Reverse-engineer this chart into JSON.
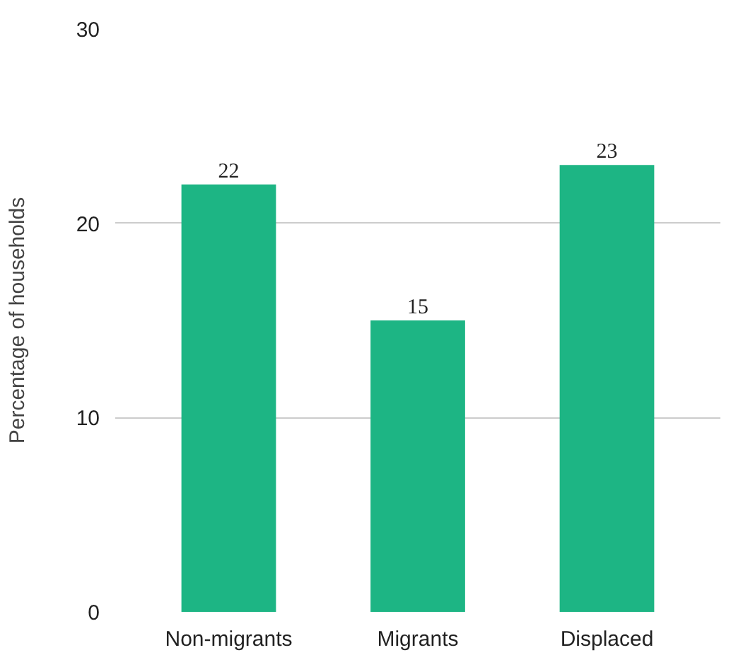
{
  "chart_data": {
    "type": "bar",
    "ylabel": "Percentage of households",
    "categories": [
      "Non-migrants",
      "Migrants",
      "Displaced"
    ],
    "values": [
      22,
      15,
      23
    ],
    "color": "#1db584",
    "ylim": [
      0,
      30
    ],
    "yticks": [
      0,
      10,
      20,
      30
    ],
    "grid": "y",
    "data_labels": true
  }
}
